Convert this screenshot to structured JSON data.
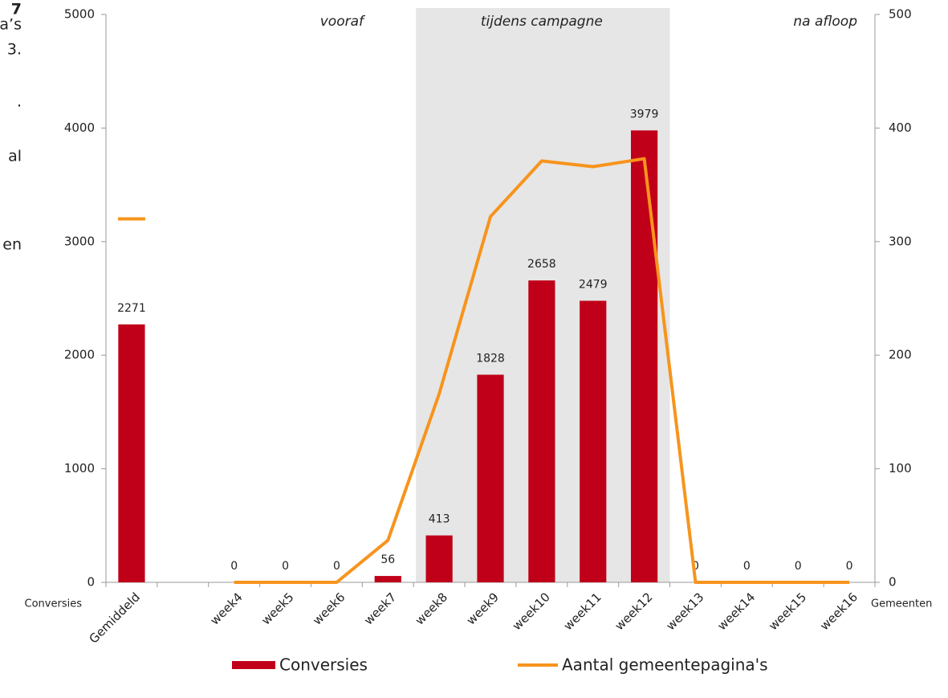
{
  "sidebar_fragments": [
    "7",
    "a’s",
    "3.",
    ".",
    "al",
    "en"
  ],
  "chart_data": {
    "type": "bar",
    "categories": [
      "Gemiddeld",
      null,
      "week4",
      "week5",
      "week6",
      "week7",
      "week8",
      "week9",
      "week10",
      "week11",
      "week12",
      "week13",
      "week14",
      "week15",
      "week16"
    ],
    "series": [
      {
        "name": "Conversies",
        "color": "#c00018",
        "type": "bar",
        "values": [
          2271,
          null,
          0,
          0,
          0,
          56,
          413,
          1828,
          2658,
          2479,
          3979,
          0,
          0,
          0,
          0
        ]
      },
      {
        "name": "Aantal gemeentepagina's",
        "color": "#f7941d",
        "type": "line",
        "axis": "y2",
        "values": [
          320,
          null,
          0,
          0,
          0,
          37,
          166,
          322,
          371,
          366,
          373,
          0,
          0,
          0,
          0
        ]
      }
    ],
    "ylabel": "Conversies",
    "y2label": "Gemeenten",
    "ylim": [
      0,
      5000
    ],
    "yticks": [
      0,
      1000,
      2000,
      3000,
      4000,
      5000
    ],
    "y2lim": [
      0,
      500
    ],
    "y2ticks": [
      0,
      100,
      200,
      300,
      400,
      500
    ],
    "annotations": [
      "vooraf",
      "tijdens campagne",
      "na afloop"
    ],
    "shaded_categories": [
      "week8",
      "week12"
    ],
    "shade_color": "#e6e6e6"
  }
}
